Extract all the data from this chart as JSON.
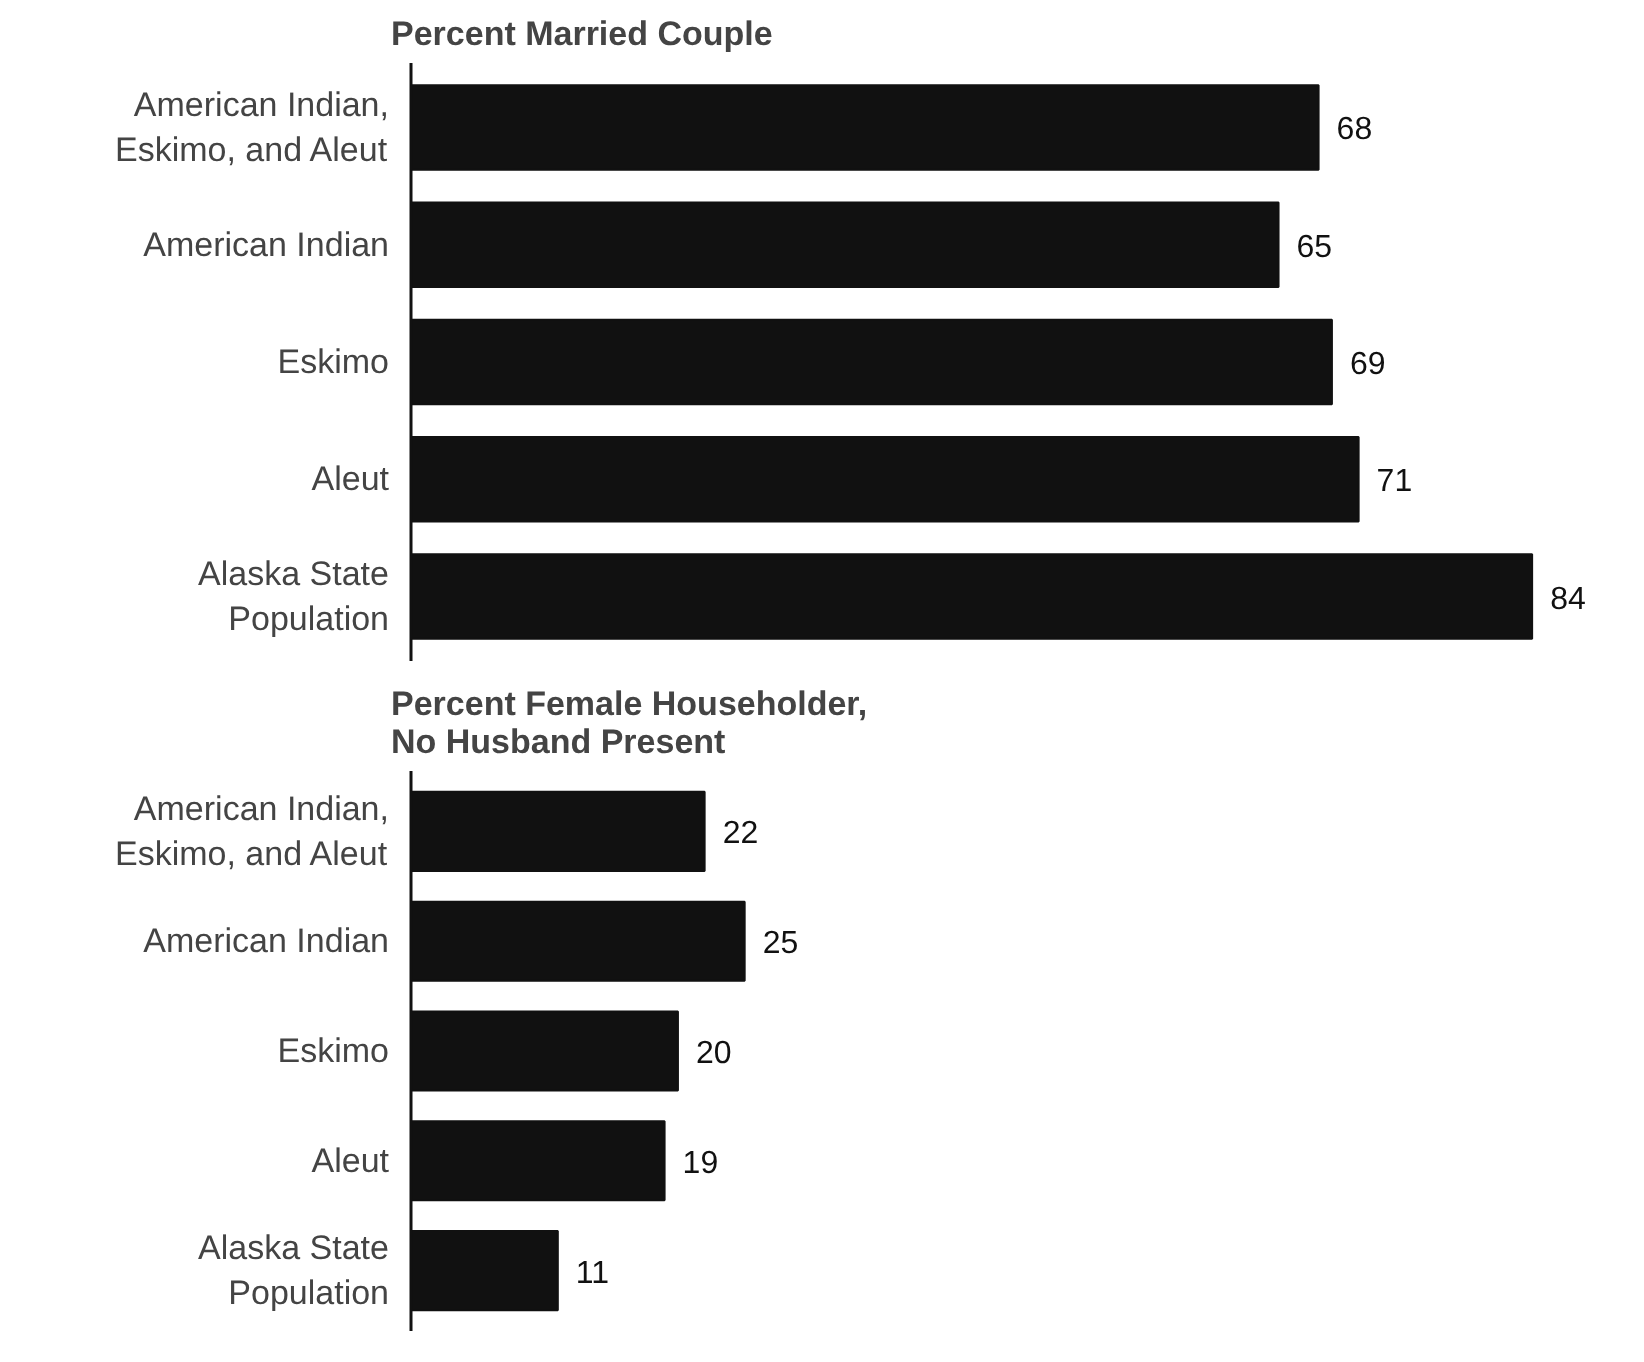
{
  "chart_data": [
    {
      "type": "bar",
      "orientation": "horizontal",
      "title": "Percent Married Couple",
      "categories": [
        "American Indian,\nEskimo, and Aleut",
        "American Indian",
        "Eskimo",
        "Aleut",
        "Alaska State\nPopulation"
      ],
      "values": [
        68,
        65,
        69,
        71,
        84
      ],
      "color": "#111111",
      "data_labels": true
    },
    {
      "type": "bar",
      "orientation": "horizontal",
      "title": "Percent Female Householder,\nNo Husband Present",
      "categories": [
        "American Indian,\nEskimo, and Aleut",
        "American Indian",
        "Eskimo",
        "Aleut",
        "Alaska State\nPopulation"
      ],
      "values": [
        22,
        25,
        20,
        19,
        11
      ],
      "color": "#111111",
      "data_labels": true
    }
  ]
}
